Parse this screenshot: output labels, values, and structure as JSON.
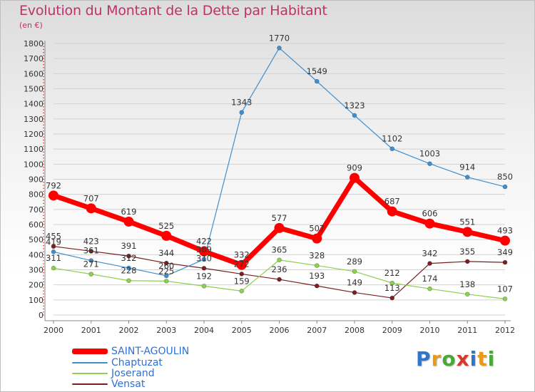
{
  "chart_data": {
    "type": "line",
    "title": "Evolution du Montant de la Dette par Habitant",
    "subtitle": "(en €)",
    "x": [
      "2000",
      "2001",
      "2002",
      "2003",
      "2004",
      "2005",
      "2006",
      "2007",
      "2008",
      "2009",
      "2010",
      "2011",
      "2012"
    ],
    "y_ticks": [
      "0",
      "100",
      "200",
      "300",
      "400",
      "500",
      "600",
      "700",
      "800",
      "900",
      "1000",
      "1100",
      "1200",
      "1300",
      "1400",
      "1500",
      "1600",
      "1700",
      "1800"
    ],
    "ylim": [
      0,
      1800
    ],
    "grid": "horizontal",
    "legend_position": "bottom-left",
    "series": [
      {
        "name": "SAINT-AGOULIN",
        "color": "#ff0000",
        "values": [
          792,
          707,
          619,
          525,
          422,
          332,
          577,
          507,
          909,
          687,
          606,
          551,
          493
        ],
        "labels": [
          "792",
          "707",
          "619",
          "525",
          "422",
          "332",
          "577",
          "507",
          "909",
          "687",
          "606",
          "551",
          "493"
        ]
      },
      {
        "name": "Chaptuzat",
        "color": "#3f8fd0",
        "values": [
          419,
          361,
          312,
          260,
          369,
          1343,
          1770,
          1549,
          1323,
          1102,
          1003,
          914,
          850
        ],
        "labels": [
          "419",
          "361",
          "312",
          "260",
          "369",
          "1343",
          "1770",
          "1549",
          "1323",
          "1102",
          "1003",
          "914",
          "850"
        ]
      },
      {
        "name": "Joserand",
        "color": "#8cd04f",
        "values": [
          311,
          271,
          228,
          225,
          192,
          159,
          365,
          328,
          289,
          212,
          174,
          138,
          107
        ],
        "labels": [
          "311",
          "271",
          "228",
          "225",
          "192",
          "159",
          "365",
          "328",
          "289",
          "212",
          "174",
          "138",
          "107"
        ]
      },
      {
        "name": "Vensat",
        "color": "#7a1f22",
        "values": [
          455,
          423,
          391,
          344,
          310,
          272,
          236,
          193,
          149,
          113,
          342,
          355,
          349
        ],
        "labels": [
          "455",
          "423",
          "391",
          "344",
          "310",
          "272",
          "236",
          "193",
          "149",
          "113",
          "342",
          "355",
          "349"
        ]
      }
    ]
  },
  "brand": {
    "letters": [
      "P",
      "r",
      "o",
      "x",
      "i",
      "t",
      "i"
    ],
    "colors": [
      "#2f76c8",
      "#e89a1c",
      "#48a838",
      "#d33a2c",
      "#2f76c8",
      "#e89a1c",
      "#48a838"
    ]
  }
}
